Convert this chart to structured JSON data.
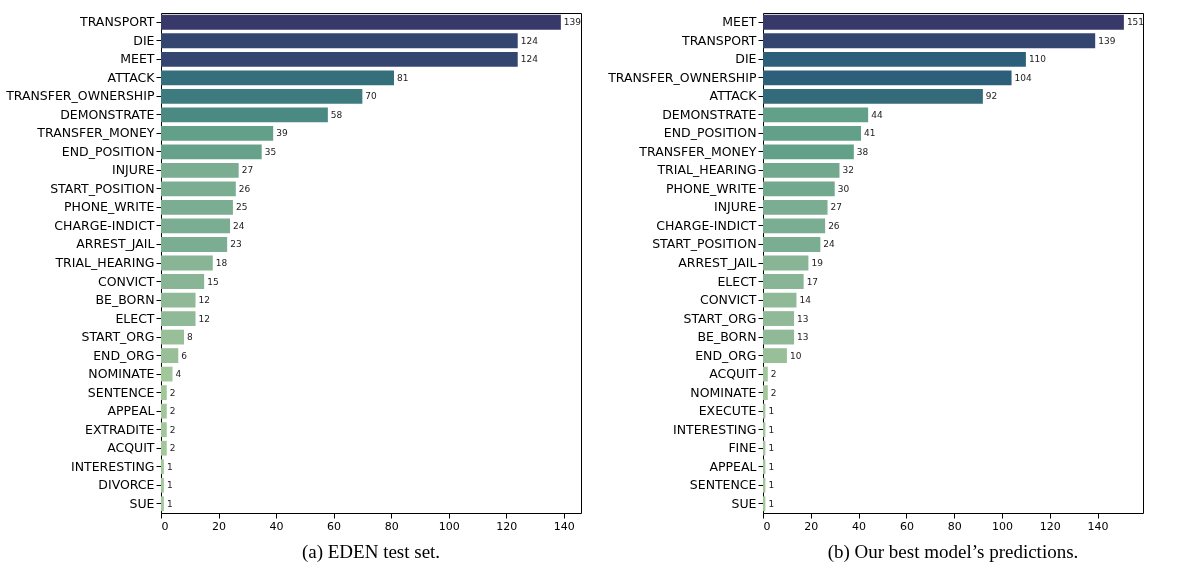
{
  "chart_data": [
    {
      "type": "bar",
      "orientation": "horizontal",
      "title": "(a)  EDEN test set.",
      "data_labels": true,
      "xlim": [
        0,
        146
      ],
      "xticks": [
        0,
        20,
        40,
        60,
        80,
        100,
        120,
        140
      ],
      "categories": [
        "TRANSPORT",
        "DIE",
        "MEET",
        "ATTACK",
        "TRANSFER_OWNERSHIP",
        "DEMONSTRATE",
        "TRANSFER_MONEY",
        "END_POSITION",
        "INJURE",
        "START_POSITION",
        "PHONE_WRITE",
        "CHARGE-INDICT",
        "ARREST_JAIL",
        "TRIAL_HEARING",
        "CONVICT",
        "BE_BORN",
        "ELECT",
        "START_ORG",
        "END_ORG",
        "NOMINATE",
        "SENTENCE",
        "APPEAL",
        "EXTRADITE",
        "ACQUIT",
        "INTERESTING",
        "DIVORCE",
        "SUE"
      ],
      "values": [
        139,
        124,
        124,
        81,
        70,
        58,
        39,
        35,
        27,
        26,
        25,
        24,
        23,
        18,
        15,
        12,
        12,
        8,
        6,
        4,
        2,
        2,
        2,
        2,
        1,
        1,
        1
      ],
      "colors": [
        "#38386a",
        "#34466f",
        "#34466f",
        "#366f7c",
        "#3e7b7e",
        "#4a8a83",
        "#62a08a",
        "#66a18b",
        "#7aad92",
        "#7aad92",
        "#7aad92",
        "#7aad92",
        "#7aad92",
        "#88b595",
        "#88b595",
        "#90ba97",
        "#90ba97",
        "#98bf98",
        "#98bf98",
        "#a2c79a",
        "#a2c79a",
        "#a2c79a",
        "#a2c79a",
        "#a2c79a",
        "#a2c79a",
        "#a2c79a",
        "#a2c79a"
      ]
    },
    {
      "type": "bar",
      "orientation": "horizontal",
      "title": "(b)  Our best model’s predictions.",
      "data_labels": true,
      "xlim": [
        0,
        159
      ],
      "xticks": [
        0,
        20,
        40,
        60,
        80,
        100,
        120,
        140
      ],
      "categories": [
        "MEET",
        "TRANSPORT",
        "DIE",
        "TRANSFER_OWNERSHIP",
        "ATTACK",
        "DEMONSTRATE",
        "END_POSITION",
        "TRANSFER_MONEY",
        "TRIAL_HEARING",
        "PHONE_WRITE",
        "INJURE",
        "CHARGE-INDICT",
        "START_POSITION",
        "ARREST_JAIL",
        "ELECT",
        "CONVICT",
        "START_ORG",
        "BE_BORN",
        "END_ORG",
        "ACQUIT",
        "NOMINATE",
        "EXECUTE",
        "INTERESTING",
        "FINE",
        "APPEAL",
        "SENTENCE",
        "SUE"
      ],
      "values": [
        151,
        139,
        110,
        104,
        92,
        44,
        41,
        38,
        32,
        30,
        27,
        26,
        24,
        19,
        17,
        14,
        13,
        13,
        10,
        2,
        2,
        1,
        1,
        1,
        1,
        1,
        1
      ],
      "colors": [
        "#38386a",
        "#34466f",
        "#2c607a",
        "#2c607a",
        "#346b7b",
        "#62a08a",
        "#62a08a",
        "#62a08a",
        "#72a88e",
        "#72a88e",
        "#7aad92",
        "#7aad92",
        "#7aad92",
        "#88b595",
        "#88b595",
        "#90ba97",
        "#90ba97",
        "#90ba97",
        "#98bf98",
        "#a2c79a",
        "#a2c79a",
        "#a2c79a",
        "#a2c79a",
        "#a2c79a",
        "#a2c79a",
        "#a2c79a",
        "#a2c79a"
      ]
    }
  ]
}
